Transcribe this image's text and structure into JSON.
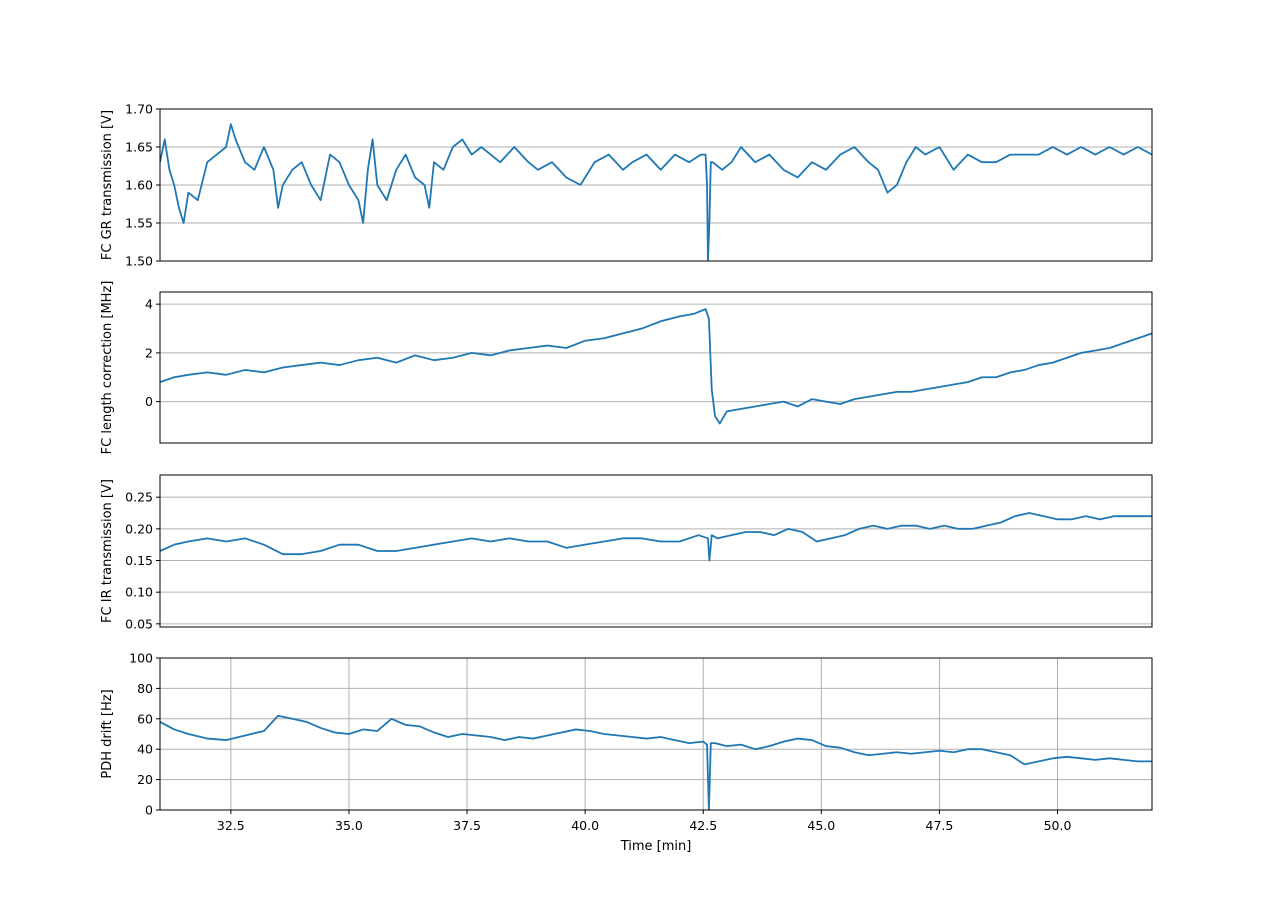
{
  "figure": {
    "xlabel": "Time [min]"
  },
  "colors": {
    "series": "#1f77b4",
    "grid": "#b0b0b0",
    "axes": "#000000"
  },
  "chart_data": [
    {
      "type": "line",
      "ylabel": "FC GR transmission [V]",
      "xlim": [
        31.0,
        52.0
      ],
      "ylim": [
        1.5,
        1.7
      ],
      "xticks": [],
      "yticks": [
        1.5,
        1.55,
        1.6,
        1.65,
        1.7
      ],
      "ytick_labels": [
        "1.50",
        "1.55",
        "1.60",
        "1.65",
        "1.70"
      ],
      "grid": "horizontal",
      "x": [
        31.0,
        31.1,
        31.2,
        31.3,
        31.4,
        31.5,
        31.6,
        31.8,
        32.0,
        32.2,
        32.4,
        32.5,
        32.6,
        32.8,
        33.0,
        33.2,
        33.4,
        33.5,
        33.6,
        33.8,
        34.0,
        34.2,
        34.4,
        34.6,
        34.8,
        35.0,
        35.2,
        35.3,
        35.4,
        35.5,
        35.6,
        35.8,
        36.0,
        36.2,
        36.4,
        36.6,
        36.7,
        36.8,
        37.0,
        37.2,
        37.4,
        37.6,
        37.8,
        38.0,
        38.2,
        38.5,
        38.8,
        39.0,
        39.3,
        39.6,
        39.9,
        40.2,
        40.5,
        40.8,
        41.0,
        41.3,
        41.6,
        41.9,
        42.2,
        42.45,
        42.55,
        42.58,
        42.6,
        42.63,
        42.66,
        42.7,
        42.9,
        43.1,
        43.3,
        43.6,
        43.9,
        44.2,
        44.5,
        44.8,
        45.1,
        45.4,
        45.7,
        46.0,
        46.2,
        46.4,
        46.6,
        46.8,
        47.0,
        47.2,
        47.5,
        47.8,
        48.1,
        48.4,
        48.7,
        49.0,
        49.3,
        49.6,
        49.9,
        50.2,
        50.5,
        50.8,
        51.1,
        51.4,
        51.7,
        52.0
      ],
      "y": [
        1.63,
        1.66,
        1.62,
        1.6,
        1.57,
        1.55,
        1.59,
        1.58,
        1.63,
        1.64,
        1.65,
        1.68,
        1.66,
        1.63,
        1.62,
        1.65,
        1.62,
        1.57,
        1.6,
        1.62,
        1.63,
        1.6,
        1.58,
        1.64,
        1.63,
        1.6,
        1.58,
        1.55,
        1.62,
        1.66,
        1.6,
        1.58,
        1.62,
        1.64,
        1.61,
        1.6,
        1.57,
        1.63,
        1.62,
        1.65,
        1.66,
        1.64,
        1.65,
        1.64,
        1.63,
        1.65,
        1.63,
        1.62,
        1.63,
        1.61,
        1.6,
        1.63,
        1.64,
        1.62,
        1.63,
        1.64,
        1.62,
        1.64,
        1.63,
        1.64,
        1.64,
        1.6,
        1.5,
        1.55,
        1.63,
        1.63,
        1.62,
        1.63,
        1.65,
        1.63,
        1.64,
        1.62,
        1.61,
        1.63,
        1.62,
        1.64,
        1.65,
        1.63,
        1.62,
        1.59,
        1.6,
        1.63,
        1.65,
        1.64,
        1.65,
        1.62,
        1.64,
        1.63,
        1.63,
        1.64,
        1.64,
        1.64,
        1.65,
        1.64,
        1.65,
        1.64,
        1.65,
        1.64,
        1.65,
        1.64
      ]
    },
    {
      "type": "line",
      "ylabel": "FC length correction [MHz]",
      "xlim": [
        31.0,
        52.0
      ],
      "ylim": [
        -1.7,
        4.5
      ],
      "xticks": [],
      "yticks": [
        0,
        2,
        4
      ],
      "ytick_labels": [
        "0",
        "2",
        "4"
      ],
      "grid": "horizontal",
      "x": [
        31.0,
        31.3,
        31.6,
        32.0,
        32.4,
        32.8,
        33.2,
        33.6,
        34.0,
        34.4,
        34.8,
        35.2,
        35.6,
        36.0,
        36.4,
        36.8,
        37.2,
        37.6,
        38.0,
        38.4,
        38.8,
        39.2,
        39.6,
        40.0,
        40.4,
        40.8,
        41.2,
        41.6,
        42.0,
        42.3,
        42.55,
        42.62,
        42.68,
        42.75,
        42.85,
        43.0,
        43.3,
        43.6,
        43.9,
        44.2,
        44.5,
        44.8,
        45.1,
        45.4,
        45.7,
        46.0,
        46.3,
        46.6,
        46.9,
        47.2,
        47.5,
        47.8,
        48.1,
        48.4,
        48.7,
        49.0,
        49.3,
        49.6,
        49.9,
        50.2,
        50.5,
        50.8,
        51.1,
        51.4,
        51.7,
        52.0
      ],
      "y": [
        0.8,
        1.0,
        1.1,
        1.2,
        1.1,
        1.3,
        1.2,
        1.4,
        1.5,
        1.6,
        1.5,
        1.7,
        1.8,
        1.6,
        1.9,
        1.7,
        1.8,
        2.0,
        1.9,
        2.1,
        2.2,
        2.3,
        2.2,
        2.5,
        2.6,
        2.8,
        3.0,
        3.3,
        3.5,
        3.6,
        3.8,
        3.4,
        0.5,
        -0.6,
        -0.9,
        -0.4,
        -0.3,
        -0.2,
        -0.1,
        0.0,
        -0.2,
        0.1,
        0.0,
        -0.1,
        0.1,
        0.2,
        0.3,
        0.4,
        0.4,
        0.5,
        0.6,
        0.7,
        0.8,
        1.0,
        1.0,
        1.2,
        1.3,
        1.5,
        1.6,
        1.8,
        2.0,
        2.1,
        2.2,
        2.4,
        2.6,
        2.8
      ]
    },
    {
      "type": "line",
      "ylabel": "FC IR transmission [V]",
      "xlim": [
        31.0,
        52.0
      ],
      "ylim": [
        0.045,
        0.285
      ],
      "xticks": [],
      "yticks": [
        0.05,
        0.1,
        0.15,
        0.2,
        0.25
      ],
      "ytick_labels": [
        "0.05",
        "0.10",
        "0.15",
        "0.20",
        "0.25"
      ],
      "grid": "horizontal",
      "x": [
        31.0,
        31.3,
        31.6,
        32.0,
        32.4,
        32.8,
        33.2,
        33.6,
        34.0,
        34.4,
        34.8,
        35.2,
        35.6,
        36.0,
        36.4,
        36.8,
        37.2,
        37.6,
        38.0,
        38.4,
        38.8,
        39.2,
        39.6,
        40.0,
        40.4,
        40.8,
        41.2,
        41.6,
        42.0,
        42.4,
        42.6,
        42.63,
        42.68,
        42.8,
        43.1,
        43.4,
        43.7,
        44.0,
        44.3,
        44.6,
        44.9,
        45.2,
        45.5,
        45.8,
        46.1,
        46.4,
        46.7,
        47.0,
        47.3,
        47.6,
        47.9,
        48.2,
        48.5,
        48.8,
        49.1,
        49.4,
        49.7,
        50.0,
        50.3,
        50.6,
        50.9,
        51.2,
        51.5,
        51.8,
        52.0
      ],
      "y": [
        0.165,
        0.175,
        0.18,
        0.185,
        0.18,
        0.185,
        0.175,
        0.16,
        0.16,
        0.165,
        0.175,
        0.175,
        0.165,
        0.165,
        0.17,
        0.175,
        0.18,
        0.185,
        0.18,
        0.185,
        0.18,
        0.18,
        0.17,
        0.175,
        0.18,
        0.185,
        0.185,
        0.18,
        0.18,
        0.19,
        0.185,
        0.15,
        0.19,
        0.185,
        0.19,
        0.195,
        0.195,
        0.19,
        0.2,
        0.195,
        0.18,
        0.185,
        0.19,
        0.2,
        0.205,
        0.2,
        0.205,
        0.205,
        0.2,
        0.205,
        0.2,
        0.2,
        0.205,
        0.21,
        0.22,
        0.225,
        0.22,
        0.215,
        0.215,
        0.22,
        0.215,
        0.22,
        0.22,
        0.22,
        0.22
      ]
    },
    {
      "type": "line",
      "ylabel": "PDH drift [Hz]",
      "xlabel": "Time [min]",
      "xlim": [
        31.0,
        52.0
      ],
      "ylim": [
        0,
        100
      ],
      "xticks": [
        32.5,
        35.0,
        37.5,
        40.0,
        42.5,
        45.0,
        47.5,
        50.0
      ],
      "xtick_labels": [
        "32.5",
        "35.0",
        "37.5",
        "40.0",
        "42.5",
        "45.0",
        "47.5",
        "50.0"
      ],
      "yticks": [
        0,
        20,
        40,
        60,
        80,
        100
      ],
      "ytick_labels": [
        "0",
        "20",
        "40",
        "60",
        "80",
        "100"
      ],
      "grid": "both",
      "x": [
        31.0,
        31.3,
        31.6,
        32.0,
        32.4,
        32.8,
        33.2,
        33.5,
        33.8,
        34.1,
        34.4,
        34.7,
        35.0,
        35.3,
        35.6,
        35.9,
        36.2,
        36.5,
        36.8,
        37.1,
        37.4,
        37.7,
        38.0,
        38.3,
        38.6,
        38.9,
        39.2,
        39.5,
        39.8,
        40.1,
        40.4,
        40.7,
        41.0,
        41.3,
        41.6,
        41.9,
        42.2,
        42.5,
        42.58,
        42.62,
        42.66,
        42.75,
        43.0,
        43.3,
        43.6,
        43.9,
        44.2,
        44.5,
        44.8,
        45.1,
        45.4,
        45.7,
        46.0,
        46.3,
        46.6,
        46.9,
        47.2,
        47.5,
        47.8,
        48.1,
        48.4,
        48.7,
        49.0,
        49.3,
        49.6,
        49.9,
        50.2,
        50.5,
        50.8,
        51.1,
        51.4,
        51.7,
        52.0
      ],
      "y": [
        58,
        53,
        50,
        47,
        46,
        49,
        52,
        62,
        60,
        58,
        54,
        51,
        50,
        53,
        52,
        60,
        56,
        55,
        51,
        48,
        50,
        49,
        48,
        46,
        48,
        47,
        49,
        51,
        53,
        52,
        50,
        49,
        48,
        47,
        48,
        46,
        44,
        45,
        43,
        0,
        44,
        44,
        42,
        43,
        40,
        42,
        45,
        47,
        46,
        42,
        41,
        38,
        36,
        37,
        38,
        37,
        38,
        39,
        38,
        40,
        40,
        38,
        36,
        30,
        32,
        34,
        35,
        34,
        33,
        34,
        33,
        32,
        32
      ]
    }
  ]
}
